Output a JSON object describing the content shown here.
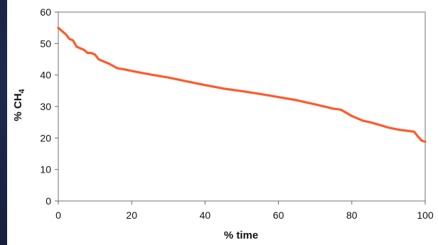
{
  "chart_data": {
    "type": "line",
    "xlabel": "% time",
    "ylabel": "% CH",
    "ylabel_subscript": "4",
    "xlim": [
      0,
      100
    ],
    "ylim": [
      0,
      60
    ],
    "xticks": [
      0,
      20,
      40,
      60,
      80,
      100
    ],
    "yticks": [
      0,
      10,
      20,
      30,
      40,
      50,
      60
    ],
    "grid": false,
    "series": [
      {
        "color": "#ff5a2a",
        "x": [
          0,
          1,
          2,
          3,
          4,
          5,
          6,
          7,
          8,
          9,
          10,
          11,
          12,
          14,
          16,
          18,
          20,
          25,
          30,
          35,
          40,
          45,
          50,
          55,
          60,
          65,
          70,
          75,
          77,
          80,
          83,
          85,
          88,
          90,
          93,
          95,
          97,
          98,
          99,
          100
        ],
        "y": [
          55,
          54,
          53,
          51.5,
          51,
          49,
          48.5,
          48,
          47,
          47,
          46.5,
          45,
          44.5,
          43.5,
          42.2,
          41.8,
          41.3,
          40.2,
          39.2,
          38,
          36.8,
          35.7,
          34.9,
          34,
          33,
          32,
          30.7,
          29.3,
          29,
          27,
          25.5,
          25,
          24,
          23.3,
          22.6,
          22.3,
          22,
          20.5,
          19.2,
          18.8
        ]
      }
    ]
  }
}
